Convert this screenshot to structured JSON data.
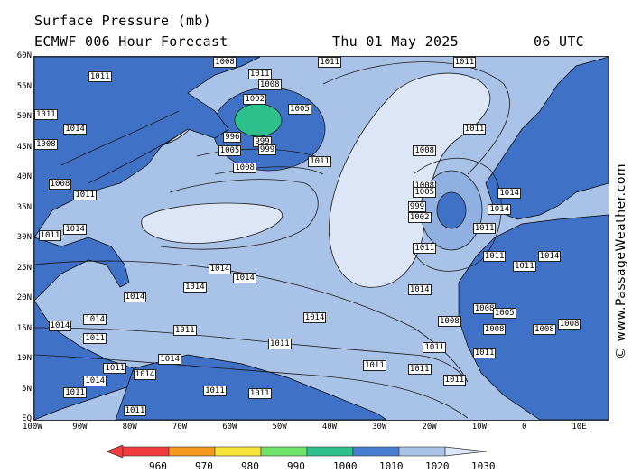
{
  "header": {
    "title": "Surface Pressure (mb)",
    "model_line": "ECMWF 006 Hour Forecast",
    "date": "Thu 01 May 2025",
    "time": "06 UTC"
  },
  "watermark": "© www.PassageWeather.com",
  "lat_labels": [
    "60N",
    "55N",
    "50N",
    "45N",
    "40N",
    "35N",
    "30N",
    "25N",
    "20N",
    "15N",
    "10N",
    "5N",
    "EQ"
  ],
  "lon_labels": [
    "100W",
    "90W",
    "80W",
    "70W",
    "60W",
    "50W",
    "40W",
    "30W",
    "20W",
    "10W",
    "0",
    "10E"
  ],
  "colors": {
    "land": "#3f72c7",
    "ocean_1010_1020": "#a9c3e8",
    "ocean_1020_1030": "#dde6f6",
    "low_990_1000": "#2e6fd0",
    "low_980_990": "#2dbf8c",
    "isobar": "#1a1a1a",
    "coast": "#000000"
  },
  "scale": {
    "labels": [
      "960",
      "970",
      "980",
      "990",
      "1000",
      "1010",
      "1020",
      "1030"
    ],
    "colors": [
      "#f03c3c",
      "#f59a1e",
      "#f7e43a",
      "#6ee36a",
      "#2dbf8c",
      "#4a7ed0",
      "#a9c3e8",
      "#dde6f6"
    ]
  },
  "pressure_labels": [
    {
      "v": "1008",
      "lon": -62,
      "lat": 59.5
    },
    {
      "v": "1011",
      "lon": -41,
      "lat": 59.7
    },
    {
      "v": "1011",
      "lon": -14,
      "lat": 59.7
    },
    {
      "v": "1011",
      "lon": -55,
      "lat": 57.2
    },
    {
      "v": "1008",
      "lon": -53,
      "lat": 55.3
    },
    {
      "v": "1002",
      "lon": -56,
      "lat": 53.0
    },
    {
      "v": "1005",
      "lon": -47,
      "lat": 51.3
    },
    {
      "v": "996",
      "lon": -60,
      "lat": 46.7
    },
    {
      "v": "999",
      "lon": -54,
      "lat": 46.0
    },
    {
      "v": "1005",
      "lon": -61,
      "lat": 44.5
    },
    {
      "v": "999",
      "lon": -53,
      "lat": 44.6
    },
    {
      "v": "1008",
      "lon": -58,
      "lat": 41.7
    },
    {
      "v": "1011",
      "lon": -43,
      "lat": 42.7
    },
    {
      "v": "1011",
      "lon": -87,
      "lat": 56.7
    },
    {
      "v": "1011",
      "lon": -98,
      "lat": 50.4
    },
    {
      "v": "1014",
      "lon": -92,
      "lat": 48.0
    },
    {
      "v": "1008",
      "lon": -98,
      "lat": 45.5
    },
    {
      "v": "1008",
      "lon": -95,
      "lat": 39.0
    },
    {
      "v": "1011",
      "lon": -90,
      "lat": 37.1
    },
    {
      "v": "1011",
      "lon": -97,
      "lat": 30.4
    },
    {
      "v": "1014",
      "lon": -92,
      "lat": 31.5
    },
    {
      "v": "1008",
      "lon": -22,
      "lat": 44.5
    },
    {
      "v": "1011",
      "lon": -12,
      "lat": 48.0
    },
    {
      "v": "1008",
      "lon": -22,
      "lat": 38.7
    },
    {
      "v": "1005",
      "lon": -22,
      "lat": 37.6
    },
    {
      "v": "999",
      "lon": -23,
      "lat": 35.2
    },
    {
      "v": "1002",
      "lon": -23,
      "lat": 33.4
    },
    {
      "v": "1014",
      "lon": -5,
      "lat": 37.5
    },
    {
      "v": "1014",
      "lon": -7,
      "lat": 34.8
    },
    {
      "v": "1011",
      "lon": -10,
      "lat": 31.6
    },
    {
      "v": "1011",
      "lon": -22,
      "lat": 28.3
    },
    {
      "v": "1011",
      "lon": -8,
      "lat": 27.0
    },
    {
      "v": "1011",
      "lon": -2,
      "lat": 25.3
    },
    {
      "v": "1014",
      "lon": 3,
      "lat": 27.0
    },
    {
      "v": "1014",
      "lon": -63,
      "lat": 25.0
    },
    {
      "v": "1014",
      "lon": -58,
      "lat": 23.5
    },
    {
      "v": "1014",
      "lon": -68,
      "lat": 22.0
    },
    {
      "v": "1014",
      "lon": -80,
      "lat": 20.3
    },
    {
      "v": "1014",
      "lon": -23,
      "lat": 21.5
    },
    {
      "v": "1014",
      "lon": -44,
      "lat": 16.8
    },
    {
      "v": "1011",
      "lon": -51,
      "lat": 12.6
    },
    {
      "v": "1011",
      "lon": -70,
      "lat": 14.8
    },
    {
      "v": "1011",
      "lon": -32,
      "lat": 9.0
    },
    {
      "v": "1011",
      "lon": -20,
      "lat": 12.0
    },
    {
      "v": "1008",
      "lon": -10,
      "lat": 18.4
    },
    {
      "v": "1008",
      "lon": -17,
      "lat": 16.3
    },
    {
      "v": "1008",
      "lon": -8,
      "lat": 15.0
    },
    {
      "v": "1005",
      "lon": -6,
      "lat": 17.6
    },
    {
      "v": "1008",
      "lon": 2,
      "lat": 15.0
    },
    {
      "v": "1008",
      "lon": 7,
      "lat": 15.8
    },
    {
      "v": "1011",
      "lon": -10,
      "lat": 11.0
    },
    {
      "v": "1011",
      "lon": -23,
      "lat": 8.4
    },
    {
      "v": "1011",
      "lon": -16,
      "lat": 6.6
    },
    {
      "v": "1014",
      "lon": -88,
      "lat": 6.4
    },
    {
      "v": "1014",
      "lon": -78,
      "lat": 7.5
    },
    {
      "v": "1011",
      "lon": -84,
      "lat": 8.5
    },
    {
      "v": "1011",
      "lon": -92,
      "lat": 4.5
    },
    {
      "v": "1011",
      "lon": -64,
      "lat": 4.8
    },
    {
      "v": "1011",
      "lon": -55,
      "lat": 4.3
    },
    {
      "v": "1011",
      "lon": -80,
      "lat": 1.5
    },
    {
      "v": "1014",
      "lon": -73,
      "lat": 10.0
    },
    {
      "v": "1014",
      "lon": -95,
      "lat": 15.5
    },
    {
      "v": "1011",
      "lon": -88,
      "lat": 13.5
    },
    {
      "v": "1014",
      "lon": -88,
      "lat": 16.5
    }
  ]
}
